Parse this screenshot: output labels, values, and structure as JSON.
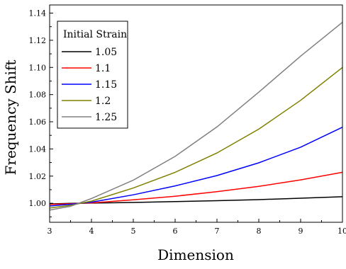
{
  "chart_data": {
    "type": "line",
    "title": "",
    "xlabel": "Dimension",
    "ylabel": "Frequency Shift",
    "xlim": [
      3,
      10
    ],
    "ylim": [
      0.986,
      1.146
    ],
    "x_ticks": [
      3,
      4,
      5,
      6,
      7,
      8,
      9,
      10
    ],
    "y_ticks": [
      1.0,
      1.02,
      1.04,
      1.06,
      1.08,
      1.1,
      1.12,
      1.14
    ],
    "y_tick_labels": [
      "1.00",
      "1.02",
      "1.04",
      "1.06",
      "1.08",
      "1.10",
      "1.12",
      "1.14"
    ],
    "legend": {
      "title": "Initial Strain",
      "position": "top-left"
    },
    "x": [
      3,
      3.5,
      4,
      5,
      6,
      7,
      8,
      9,
      10
    ],
    "series": [
      {
        "name": "1.05",
        "color": "#000000",
        "values": [
          0.9995,
          0.9999,
          1.0001,
          1.0006,
          1.0012,
          1.0019,
          1.0027,
          1.0037,
          1.0048
        ]
      },
      {
        "name": "1.1",
        "color": "#ff0000",
        "values": [
          0.9992,
          0.9997,
          1.0003,
          1.0025,
          1.0052,
          1.0085,
          1.0125,
          1.0172,
          1.0228
        ]
      },
      {
        "name": "1.15",
        "color": "#0000ff",
        "values": [
          0.998,
          0.9993,
          1.0008,
          1.0062,
          1.0128,
          1.0204,
          1.0298,
          1.0413,
          1.056
        ]
      },
      {
        "name": "1.2",
        "color": "#808000",
        "values": [
          0.9965,
          0.9985,
          1.0016,
          1.0112,
          1.0228,
          1.037,
          1.0546,
          1.0758,
          1.1
        ]
      },
      {
        "name": "1.25",
        "color": "#808080",
        "values": [
          0.995,
          0.9978,
          1.0035,
          1.017,
          1.0345,
          1.0562,
          1.0818,
          1.1083,
          1.1333
        ]
      }
    ]
  }
}
